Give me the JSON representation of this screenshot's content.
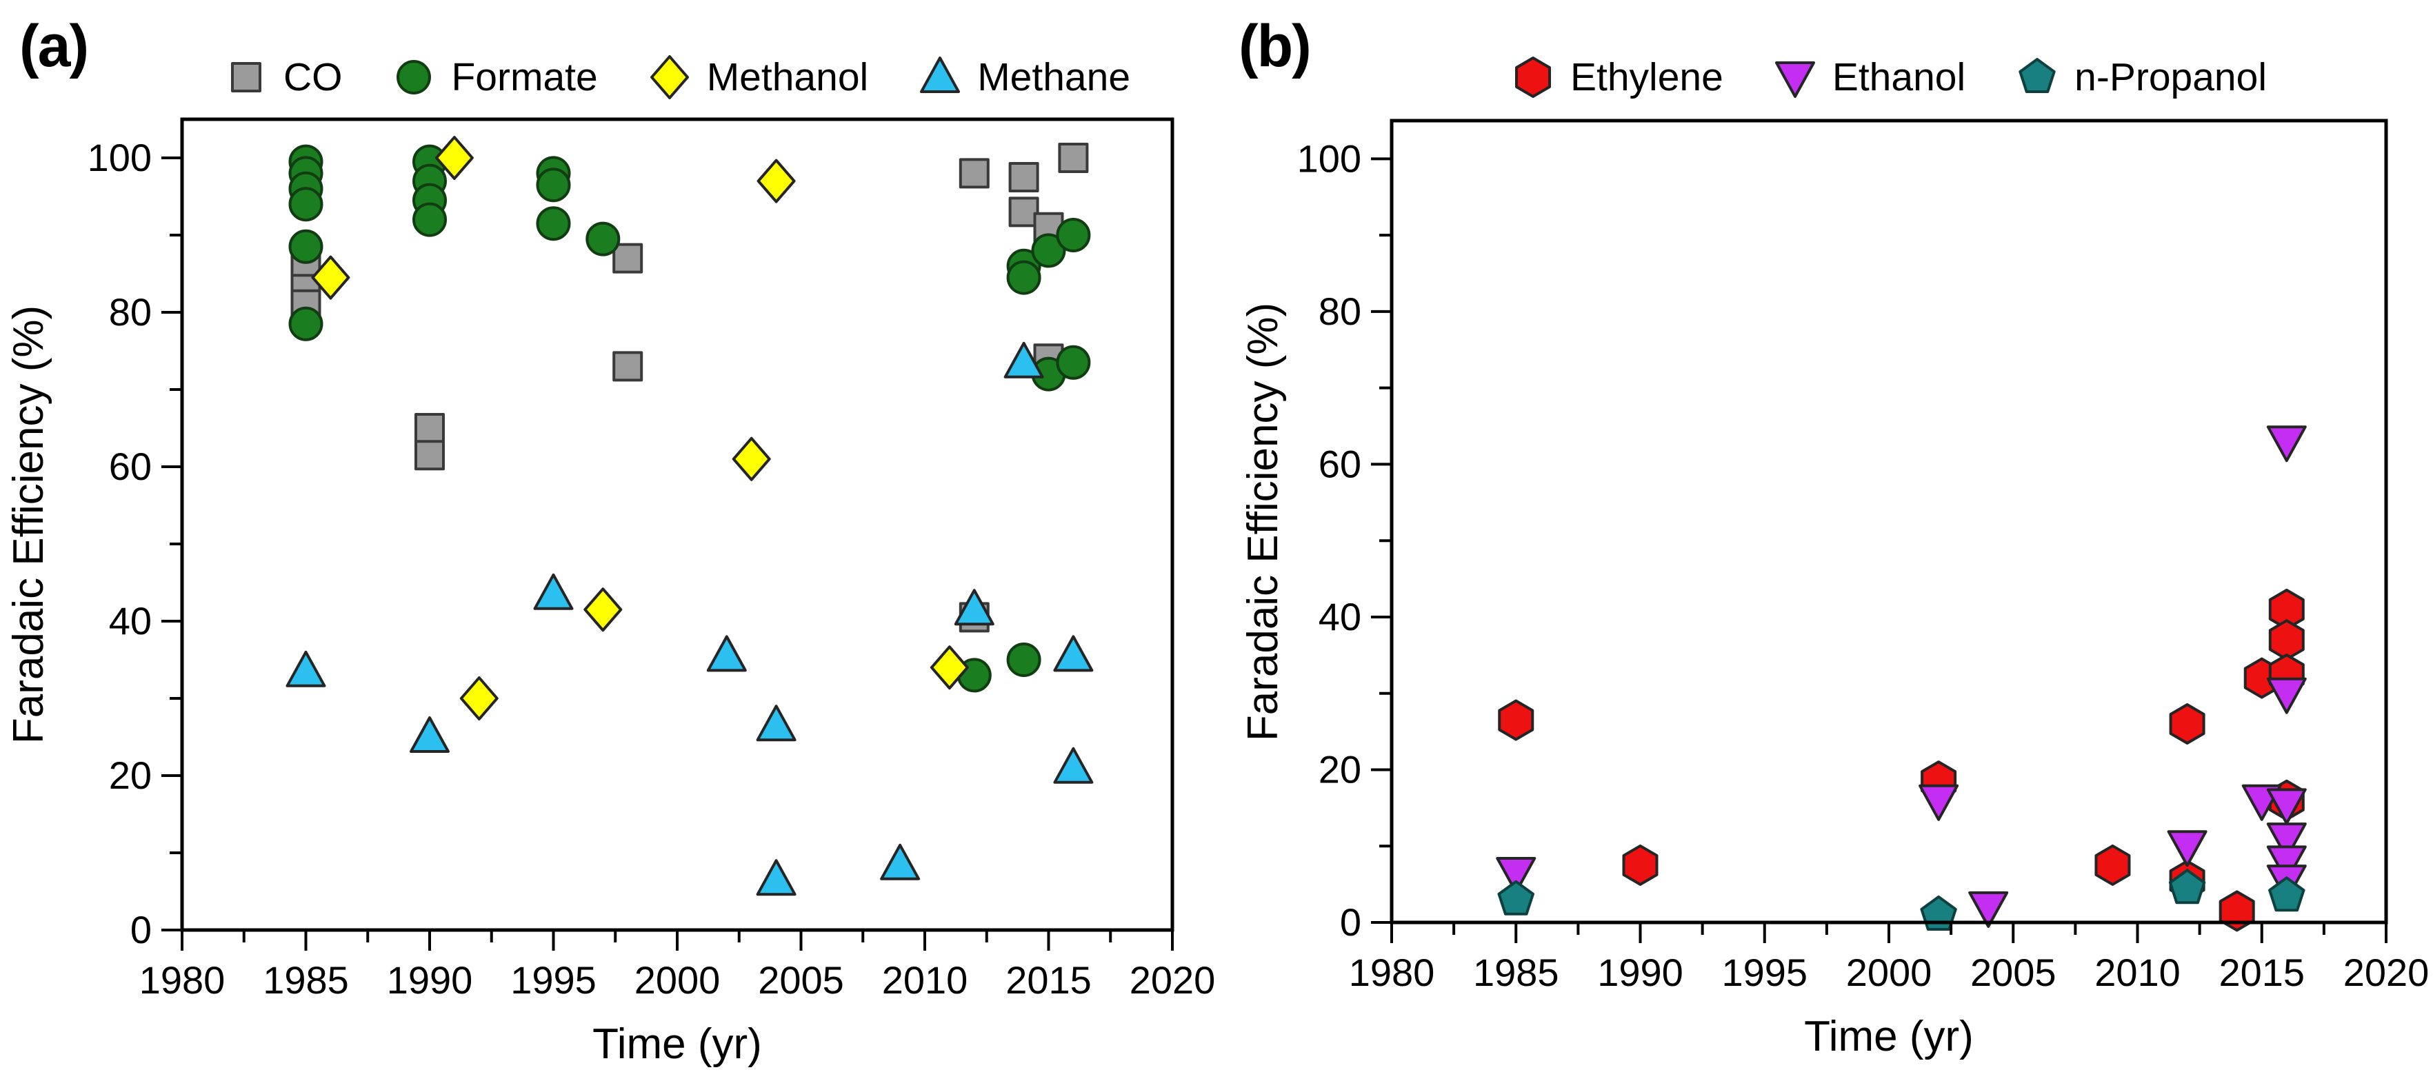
{
  "figure": {
    "panel_a_label": "(a)",
    "panel_b_label": "(b)",
    "background": "#ffffff",
    "text_color": "#000000"
  },
  "chart_data": [
    {
      "type": "scatter",
      "panel": "a",
      "panel_label": "(a)",
      "title": "",
      "xlabel": "Time (yr)",
      "ylabel": "Faradaic Efficiency (%)",
      "xlim": [
        1980,
        2020
      ],
      "ylim": [
        0,
        105
      ],
      "x_major_ticks": [
        1980,
        1985,
        1990,
        1995,
        2000,
        2005,
        2010,
        2015,
        2020
      ],
      "x_minor_step": 2.5,
      "y_major_ticks": [
        0,
        20,
        40,
        60,
        80,
        100
      ],
      "y_minor_step": 10,
      "grid": false,
      "legend_position": "top",
      "series": [
        {
          "name": "CO",
          "marker": "square",
          "fill": "#9b9b9b",
          "stroke": "#3a3a3a",
          "points": [
            [
              1985,
              96.5
            ],
            [
              1985,
              86.5
            ],
            [
              1985,
              83
            ],
            [
              1985,
              81
            ],
            [
              1990,
              65
            ],
            [
              1990,
              61.5
            ],
            [
              1998,
              87
            ],
            [
              1998,
              73
            ],
            [
              2012,
              98
            ],
            [
              2012,
              40.5
            ],
            [
              2014,
              97.5
            ],
            [
              2014,
              93
            ],
            [
              2015,
              91
            ],
            [
              2015,
              74
            ],
            [
              2016,
              100
            ]
          ]
        },
        {
          "name": "Formate",
          "marker": "circle",
          "fill": "#1a7e21",
          "stroke": "#123c12",
          "points": [
            [
              1985,
              99.5
            ],
            [
              1985,
              98
            ],
            [
              1985,
              96
            ],
            [
              1985,
              94
            ],
            [
              1985,
              88.5
            ],
            [
              1985,
              78.5
            ],
            [
              1990,
              99.5
            ],
            [
              1990,
              97
            ],
            [
              1990,
              94.5
            ],
            [
              1990,
              92
            ],
            [
              1995,
              98
            ],
            [
              1995,
              96.5
            ],
            [
              1995,
              91.5
            ],
            [
              1997,
              89.5
            ],
            [
              2012,
              33
            ],
            [
              2014,
              86
            ],
            [
              2014,
              84.5
            ],
            [
              2014,
              35
            ],
            [
              2015,
              88
            ],
            [
              2015,
              72
            ],
            [
              2016,
              90
            ],
            [
              2016,
              73.5
            ]
          ]
        },
        {
          "name": "Methanol",
          "marker": "diamond",
          "fill": "#ffff00",
          "stroke": "#252525",
          "points": [
            [
              1986,
              84.5
            ],
            [
              1991,
              100
            ],
            [
              1992,
              30
            ],
            [
              1997,
              41.5
            ],
            [
              2003,
              61
            ],
            [
              2004,
              97
            ],
            [
              2011,
              34
            ]
          ]
        },
        {
          "name": "Methane",
          "marker": "triangle-up",
          "fill": "#2bc0ef",
          "stroke": "#252525",
          "points": [
            [
              1985,
              33.5
            ],
            [
              1990,
              25
            ],
            [
              1995,
              43.5
            ],
            [
              2002,
              35.5
            ],
            [
              2004,
              26.5
            ],
            [
              2004,
              6.5
            ],
            [
              2009,
              8.5
            ],
            [
              2012,
              41.5
            ],
            [
              2014,
              73.5
            ],
            [
              2016,
              35.5
            ],
            [
              2016,
              21
            ]
          ]
        }
      ]
    },
    {
      "type": "scatter",
      "panel": "b",
      "panel_label": "(b)",
      "title": "",
      "xlabel": "Time (yr)",
      "ylabel": "Faradaic Efficiency (%)",
      "xlim": [
        1980,
        2020
      ],
      "ylim": [
        0,
        105
      ],
      "x_major_ticks": [
        1980,
        1985,
        1990,
        1995,
        2000,
        2005,
        2010,
        2015,
        2020
      ],
      "x_minor_step": 2.5,
      "y_major_ticks": [
        0,
        20,
        40,
        60,
        80,
        100
      ],
      "y_minor_step": 10,
      "grid": false,
      "legend_position": "top",
      "series": [
        {
          "name": "Ethylene",
          "marker": "hexagon",
          "fill": "#ee1111",
          "stroke": "#252525",
          "points": [
            [
              1985,
              26.5
            ],
            [
              1990,
              7.5
            ],
            [
              2002,
              18.5
            ],
            [
              2009,
              7.5
            ],
            [
              2012,
              26
            ],
            [
              2012,
              5.5
            ],
            [
              2014,
              1.5
            ],
            [
              2015,
              32
            ],
            [
              2016,
              41
            ],
            [
              2016,
              37
            ],
            [
              2016,
              32.5
            ],
            [
              2016,
              16
            ]
          ]
        },
        {
          "name": "Ethanol",
          "marker": "triangle-down",
          "fill": "#c42ef2",
          "stroke": "#252525",
          "points": [
            [
              1985,
              6.5
            ],
            [
              2002,
              16
            ],
            [
              2004,
              2
            ],
            [
              2012,
              10
            ],
            [
              2015,
              16
            ],
            [
              2016,
              63
            ],
            [
              2016,
              30
            ],
            [
              2016,
              15.5
            ],
            [
              2016,
              11
            ],
            [
              2016,
              8
            ],
            [
              2016,
              5.5
            ]
          ]
        },
        {
          "name": "n-Propanol",
          "marker": "pentagon",
          "fill": "#188080",
          "stroke": "#0e4040",
          "points": [
            [
              1985,
              3
            ],
            [
              2002,
              1
            ],
            [
              2012,
              4.5
            ],
            [
              2016,
              3.5
            ]
          ]
        }
      ]
    }
  ]
}
